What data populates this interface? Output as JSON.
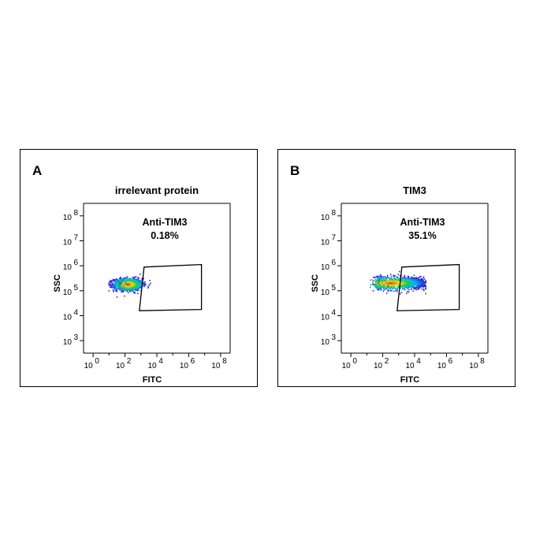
{
  "chart_data": [
    {
      "type": "scatter",
      "panel_letter": "A",
      "title": "irrelevant protein",
      "xlabel": "FITC",
      "ylabel": "SSC",
      "x_scale": "log",
      "y_scale": "log",
      "x_ticks": [
        {
          "exp": 0,
          "base": "10",
          "sup": "0"
        },
        {
          "exp": 2,
          "base": "10",
          "sup": "2"
        },
        {
          "exp": 4,
          "base": "10",
          "sup": "4"
        },
        {
          "exp": 6,
          "base": "10",
          "sup": "6"
        },
        {
          "exp": 8,
          "base": "10",
          "sup": "8"
        }
      ],
      "y_ticks": [
        {
          "exp": 3,
          "base": "10",
          "sup": "3"
        },
        {
          "exp": 4,
          "base": "10",
          "sup": "4"
        },
        {
          "exp": 5,
          "base": "10",
          "sup": "5"
        },
        {
          "exp": 6,
          "base": "10",
          "sup": "6"
        },
        {
          "exp": 7,
          "base": "10",
          "sup": "7"
        },
        {
          "exp": 8,
          "base": "10",
          "sup": "8"
        }
      ],
      "xlim_log10": [
        -0.6,
        8.6
      ],
      "ylim_log10": [
        2.5,
        8.5
      ],
      "gate": {
        "label": "Anti-TIM3",
        "percent": "0.18%",
        "polygon_log10": [
          [
            3.2,
            5.95
          ],
          [
            6.8,
            6.05
          ],
          [
            6.8,
            4.25
          ],
          [
            2.9,
            4.2
          ]
        ]
      },
      "population": {
        "center_log10": [
          2.2,
          5.25
        ],
        "spread_log10": [
          0.45,
          0.12
        ],
        "x_range_log10": [
          1.0,
          3.6
        ]
      }
    },
    {
      "type": "scatter",
      "panel_letter": "B",
      "title": "TIM3",
      "xlabel": "FITC",
      "ylabel": "SSC",
      "x_scale": "log",
      "y_scale": "log",
      "x_ticks": [
        {
          "exp": 0,
          "base": "10",
          "sup": "0"
        },
        {
          "exp": 2,
          "base": "10",
          "sup": "2"
        },
        {
          "exp": 4,
          "base": "10",
          "sup": "4"
        },
        {
          "exp": 6,
          "base": "10",
          "sup": "6"
        },
        {
          "exp": 8,
          "base": "10",
          "sup": "8"
        }
      ],
      "y_ticks": [
        {
          "exp": 3,
          "base": "10",
          "sup": "3"
        },
        {
          "exp": 4,
          "base": "10",
          "sup": "4"
        },
        {
          "exp": 5,
          "base": "10",
          "sup": "5"
        },
        {
          "exp": 6,
          "base": "10",
          "sup": "6"
        },
        {
          "exp": 7,
          "base": "10",
          "sup": "7"
        },
        {
          "exp": 8,
          "base": "10",
          "sup": "8"
        }
      ],
      "xlim_log10": [
        -0.6,
        8.6
      ],
      "ylim_log10": [
        2.5,
        8.5
      ],
      "gate": {
        "label": "Anti-TIM3",
        "percent": "35.1%",
        "polygon_log10": [
          [
            3.2,
            5.95
          ],
          [
            6.8,
            6.05
          ],
          [
            6.8,
            4.25
          ],
          [
            2.9,
            4.2
          ]
        ]
      },
      "population": {
        "center_log10": [
          2.5,
          5.3
        ],
        "spread_log10": [
          1.0,
          0.12
        ],
        "x_range_log10": [
          1.2,
          4.7
        ]
      }
    }
  ]
}
